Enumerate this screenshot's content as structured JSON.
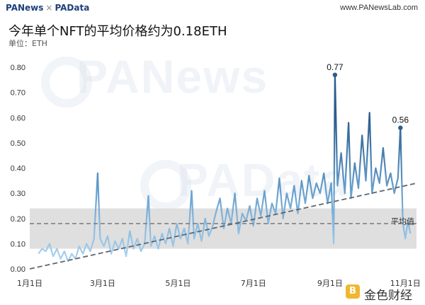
{
  "header": {
    "brand_pan": "PANews",
    "brand_sep": "×",
    "brand_data": "PAData",
    "site": "www.PANewsLab.com"
  },
  "title": "今年单个NFT的平均价格约为0.18ETH",
  "unit_label": "单位：ETH",
  "watermark": {
    "wm1": "PANews",
    "wm2": "PAData",
    "badge_icon": "B",
    "badge_text": "金色财经"
  },
  "colors": {
    "band": "#d9d9d9",
    "avg_line": "#808080",
    "trend_line": "#5e6670",
    "series_low": "#a8d0ee",
    "series_high": "#2b5d8e"
  },
  "chart_data": {
    "type": "line",
    "x_range": [
      "2021-01-01",
      "2021-11-10"
    ],
    "ylim": [
      0,
      0.82
    ],
    "y_ticks": [
      "0.00",
      "0.10",
      "0.20",
      "0.30",
      "0.40",
      "0.50",
      "0.60",
      "0.70",
      "0.80"
    ],
    "x_ticks": [
      {
        "date": "2021-01-01",
        "label": "1月1日"
      },
      {
        "date": "2021-03-01",
        "label": "3月1日"
      },
      {
        "date": "2021-05-01",
        "label": "5月1日"
      },
      {
        "date": "2021-07-01",
        "label": "7月1日"
      },
      {
        "date": "2021-09-01",
        "label": "9月1日"
      },
      {
        "date": "2021-11-01",
        "label": "11月1日"
      }
    ],
    "average": 0.18,
    "average_label": "平均值",
    "band": [
      0.08,
      0.24
    ],
    "trend": [
      {
        "date": "2021-01-01",
        "value": 0.0
      },
      {
        "date": "2021-11-10",
        "value": 0.34
      }
    ],
    "annotations": [
      {
        "date": "2021-09-05",
        "value": 0.77,
        "label": "0.77"
      },
      {
        "date": "2021-10-28",
        "value": 0.56,
        "label": "0.56"
      }
    ],
    "series": [
      {
        "points": [
          [
            "2021-01-08",
            0.06
          ],
          [
            "2021-01-11",
            0.08
          ],
          [
            "2021-01-14",
            0.07
          ],
          [
            "2021-01-17",
            0.1
          ],
          [
            "2021-01-20",
            0.05
          ],
          [
            "2021-01-23",
            0.08
          ],
          [
            "2021-01-26",
            0.04
          ],
          [
            "2021-01-29",
            0.07
          ],
          [
            "2021-02-01",
            0.03
          ],
          [
            "2021-02-04",
            0.06
          ],
          [
            "2021-02-07",
            0.04
          ],
          [
            "2021-02-10",
            0.09
          ],
          [
            "2021-02-13",
            0.06
          ],
          [
            "2021-02-16",
            0.1
          ],
          [
            "2021-02-19",
            0.07
          ],
          [
            "2021-02-22",
            0.12
          ],
          [
            "2021-02-25",
            0.38
          ],
          [
            "2021-02-27",
            0.12
          ],
          [
            "2021-03-02",
            0.09
          ],
          [
            "2021-03-05",
            0.13
          ],
          [
            "2021-03-08",
            0.06
          ],
          [
            "2021-03-11",
            0.11
          ],
          [
            "2021-03-14",
            0.08
          ],
          [
            "2021-03-17",
            0.12
          ],
          [
            "2021-03-20",
            0.05
          ],
          [
            "2021-03-23",
            0.15
          ],
          [
            "2021-03-26",
            0.08
          ],
          [
            "2021-03-29",
            0.12
          ],
          [
            "2021-04-01",
            0.07
          ],
          [
            "2021-04-04",
            0.1
          ],
          [
            "2021-04-07",
            0.29
          ],
          [
            "2021-04-09",
            0.09
          ],
          [
            "2021-04-12",
            0.13
          ],
          [
            "2021-04-15",
            0.08
          ],
          [
            "2021-04-18",
            0.14
          ],
          [
            "2021-04-21",
            0.1
          ],
          [
            "2021-04-24",
            0.16
          ],
          [
            "2021-04-27",
            0.09
          ],
          [
            "2021-04-30",
            0.18
          ],
          [
            "2021-05-03",
            0.12
          ],
          [
            "2021-05-06",
            0.16
          ],
          [
            "2021-05-09",
            0.1
          ],
          [
            "2021-05-12",
            0.31
          ],
          [
            "2021-05-14",
            0.12
          ],
          [
            "2021-05-17",
            0.18
          ],
          [
            "2021-05-20",
            0.11
          ],
          [
            "2021-05-23",
            0.2
          ],
          [
            "2021-05-26",
            0.13
          ],
          [
            "2021-05-29",
            0.17
          ],
          [
            "2021-06-01",
            0.23
          ],
          [
            "2021-06-04",
            0.28
          ],
          [
            "2021-06-07",
            0.16
          ],
          [
            "2021-06-10",
            0.24
          ],
          [
            "2021-06-13",
            0.18
          ],
          [
            "2021-06-16",
            0.3
          ],
          [
            "2021-06-19",
            0.14
          ],
          [
            "2021-06-22",
            0.22
          ],
          [
            "2021-06-25",
            0.19
          ],
          [
            "2021-06-28",
            0.25
          ],
          [
            "2021-07-01",
            0.17
          ],
          [
            "2021-07-04",
            0.28
          ],
          [
            "2021-07-07",
            0.21
          ],
          [
            "2021-07-10",
            0.31
          ],
          [
            "2021-07-13",
            0.18
          ],
          [
            "2021-07-16",
            0.26
          ],
          [
            "2021-07-19",
            0.22
          ],
          [
            "2021-07-22",
            0.36
          ],
          [
            "2021-07-25",
            0.2
          ],
          [
            "2021-07-28",
            0.3
          ],
          [
            "2021-07-31",
            0.24
          ],
          [
            "2021-08-03",
            0.33
          ],
          [
            "2021-08-06",
            0.22
          ],
          [
            "2021-08-09",
            0.35
          ],
          [
            "2021-08-12",
            0.26
          ],
          [
            "2021-08-15",
            0.37
          ],
          [
            "2021-08-18",
            0.28
          ],
          [
            "2021-08-21",
            0.34
          ],
          [
            "2021-08-24",
            0.3
          ],
          [
            "2021-08-27",
            0.38
          ],
          [
            "2021-08-30",
            0.26
          ],
          [
            "2021-09-02",
            0.34
          ],
          [
            "2021-09-04",
            0.1
          ],
          [
            "2021-09-05",
            0.77
          ],
          [
            "2021-09-07",
            0.33
          ],
          [
            "2021-09-10",
            0.46
          ],
          [
            "2021-09-13",
            0.3
          ],
          [
            "2021-09-16",
            0.58
          ],
          [
            "2021-09-18",
            0.28
          ],
          [
            "2021-09-21",
            0.42
          ],
          [
            "2021-09-24",
            0.32
          ],
          [
            "2021-09-27",
            0.53
          ],
          [
            "2021-09-30",
            0.35
          ],
          [
            "2021-10-03",
            0.62
          ],
          [
            "2021-10-05",
            0.3
          ],
          [
            "2021-10-08",
            0.4
          ],
          [
            "2021-10-11",
            0.34
          ],
          [
            "2021-10-14",
            0.48
          ],
          [
            "2021-10-17",
            0.33
          ],
          [
            "2021-10-20",
            0.38
          ],
          [
            "2021-10-23",
            0.3
          ],
          [
            "2021-10-26",
            0.36
          ],
          [
            "2021-10-28",
            0.56
          ],
          [
            "2021-10-30",
            0.18
          ],
          [
            "2021-11-01",
            0.12
          ],
          [
            "2021-11-03",
            0.19
          ],
          [
            "2021-11-05",
            0.14
          ]
        ]
      }
    ]
  }
}
